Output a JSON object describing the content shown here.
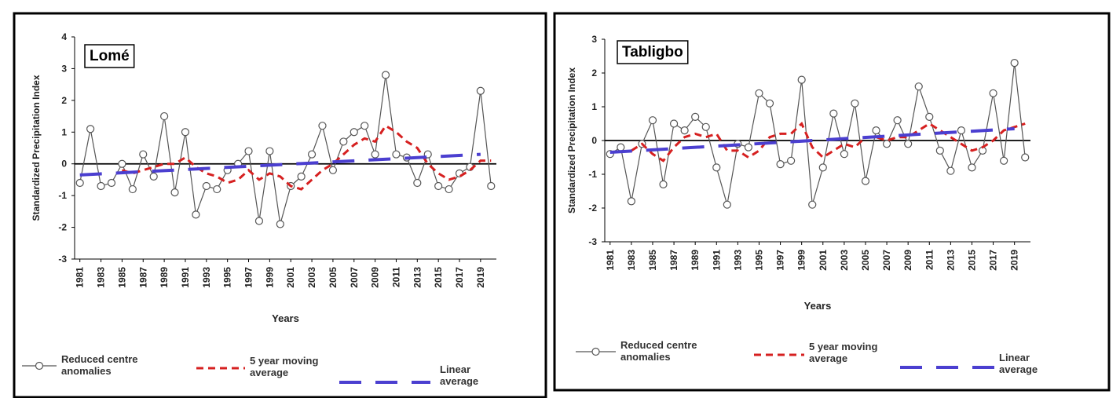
{
  "chart_data": [
    {
      "type": "line",
      "title": "Lomé",
      "xlabel": "Years",
      "ylabel": "Standardized Precipitation Index",
      "x": [
        1981,
        1982,
        1983,
        1984,
        1985,
        1986,
        1987,
        1988,
        1989,
        1990,
        1991,
        1992,
        1993,
        1994,
        1995,
        1996,
        1997,
        1998,
        1999,
        2000,
        2001,
        2002,
        2003,
        2004,
        2005,
        2006,
        2007,
        2008,
        2009,
        2010,
        2011,
        2012,
        2013,
        2014,
        2015,
        2016,
        2017,
        2018,
        2019,
        2020
      ],
      "xlim": [
        1980.5,
        2020.5
      ],
      "xticks": [
        1981,
        1983,
        1985,
        1987,
        1989,
        1991,
        1993,
        1995,
        1997,
        1999,
        2001,
        2003,
        2005,
        2007,
        2009,
        2011,
        2013,
        2015,
        2017,
        2019
      ],
      "ylim": [
        -3,
        4
      ],
      "yticks": [
        -3,
        -2,
        -1,
        0,
        1,
        2,
        3,
        4
      ],
      "series": [
        {
          "name": "Reduced centre anomalies",
          "color": "#555555",
          "linestyle": "solid",
          "marker": "circle",
          "values": [
            -0.6,
            1.1,
            -0.7,
            -0.6,
            0.0,
            -0.8,
            0.3,
            -0.4,
            1.5,
            -0.9,
            1.0,
            -1.6,
            -0.7,
            -0.8,
            -0.2,
            0.0,
            0.4,
            -1.8,
            0.4,
            -1.9,
            -0.7,
            -0.4,
            0.3,
            1.2,
            -0.2,
            0.7,
            1.0,
            1.2,
            0.3,
            2.8,
            0.3,
            0.2,
            -0.6,
            0.3,
            -0.7,
            -0.8,
            -0.3,
            -0.1,
            2.3,
            -0.7
          ]
        },
        {
          "name": "5 year moving average",
          "color": "#d62020",
          "linestyle": "dashed",
          "values": [
            null,
            null,
            null,
            null,
            -0.2,
            -0.3,
            -0.2,
            -0.1,
            0.0,
            0.0,
            0.2,
            -0.1,
            -0.3,
            -0.4,
            -0.6,
            -0.5,
            -0.2,
            -0.5,
            -0.3,
            -0.4,
            -0.7,
            -0.8,
            -0.5,
            -0.2,
            0.0,
            0.3,
            0.6,
            0.8,
            0.7,
            1.2,
            1.0,
            0.7,
            0.5,
            0.0,
            -0.3,
            -0.5,
            -0.4,
            -0.2,
            0.1,
            0.1
          ]
        },
        {
          "name": "Linear average",
          "color": "#4b3fd0",
          "linestyle": "longdash",
          "x": [
            1981,
            2019
          ],
          "values": [
            -0.35,
            0.3
          ]
        }
      ]
    },
    {
      "type": "line",
      "title": "Tabligbo",
      "xlabel": "Years",
      "ylabel": "Standardized Precipitation Index",
      "x": [
        1981,
        1982,
        1983,
        1984,
        1985,
        1986,
        1987,
        1988,
        1989,
        1990,
        1991,
        1992,
        1993,
        1994,
        1995,
        1996,
        1997,
        1998,
        1999,
        2000,
        2001,
        2002,
        2003,
        2004,
        2005,
        2006,
        2007,
        2008,
        2009,
        2010,
        2011,
        2012,
        2013,
        2014,
        2015,
        2016,
        2017,
        2018,
        2019,
        2020
      ],
      "xlim": [
        1980.5,
        2020.5
      ],
      "xticks": [
        1981,
        1983,
        1985,
        1987,
        1989,
        1991,
        1993,
        1995,
        1997,
        1999,
        2001,
        2003,
        2005,
        2007,
        2009,
        2011,
        2013,
        2015,
        2017,
        2019
      ],
      "ylim": [
        -3,
        3
      ],
      "yticks": [
        -3,
        -2,
        -1,
        0,
        1,
        2,
        3
      ],
      "series": [
        {
          "name": "Reduced centre anomalies",
          "color": "#555555",
          "linestyle": "solid",
          "marker": "circle",
          "values": [
            -0.4,
            -0.2,
            -1.8,
            -0.1,
            0.6,
            -1.3,
            0.5,
            0.3,
            0.7,
            0.4,
            -0.8,
            -1.9,
            -0.1,
            -0.2,
            1.4,
            1.1,
            -0.7,
            -0.6,
            1.8,
            -1.9,
            -0.8,
            0.8,
            -0.4,
            1.1,
            -1.2,
            0.3,
            -0.1,
            0.6,
            -0.1,
            1.6,
            0.7,
            -0.3,
            -0.9,
            0.3,
            -0.8,
            -0.3,
            1.4,
            -0.6,
            2.3,
            -0.5
          ]
        },
        {
          "name": "5 year moving average",
          "color": "#d62020",
          "linestyle": "dashed",
          "values": [
            null,
            null,
            -0.3,
            -0.1,
            -0.4,
            -0.6,
            -0.2,
            0.1,
            0.2,
            0.1,
            0.2,
            -0.3,
            -0.3,
            -0.5,
            -0.3,
            0.1,
            0.2,
            0.2,
            0.5,
            -0.2,
            -0.5,
            -0.3,
            -0.1,
            -0.2,
            0.1,
            0.1,
            0.0,
            0.1,
            0.1,
            0.3,
            0.5,
            0.3,
            0.1,
            -0.1,
            -0.3,
            -0.2,
            0.0,
            0.3,
            0.4,
            0.5
          ]
        },
        {
          "name": "Linear average",
          "color": "#4b3fd0",
          "linestyle": "longdash",
          "x": [
            1981,
            2019
          ],
          "values": [
            -0.35,
            0.35
          ]
        }
      ]
    }
  ]
}
